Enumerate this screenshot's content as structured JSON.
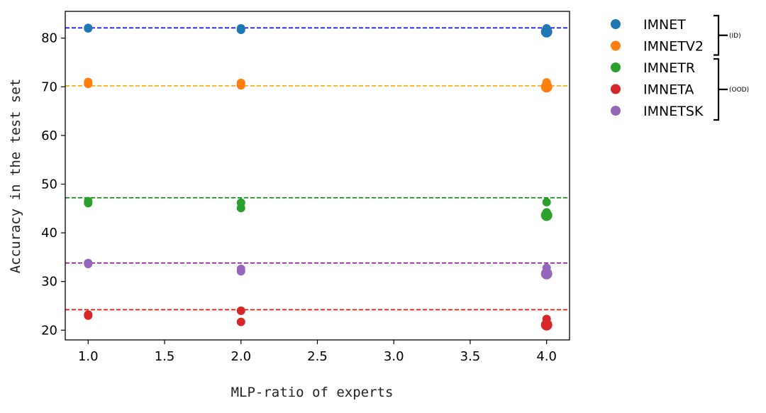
{
  "chart_data": {
    "type": "scatter",
    "xlabel": "MLP-ratio of experts",
    "ylabel": "Accuracy in the test set",
    "xlim": [
      0.85,
      4.15
    ],
    "ylim": [
      18,
      85.5
    ],
    "xticks": [
      1.0,
      1.5,
      2.0,
      2.5,
      3.0,
      3.5,
      4.0
    ],
    "xtick_labels": [
      "1.0",
      "1.5",
      "2.0",
      "2.5",
      "3.0",
      "3.5",
      "4.0"
    ],
    "yticks": [
      20,
      30,
      40,
      50,
      60,
      70,
      80
    ],
    "ytick_labels": [
      "20",
      "30",
      "40",
      "50",
      "60",
      "70",
      "80"
    ],
    "grid": false,
    "legend_position": "outside-right",
    "series": [
      {
        "name": "IMNET",
        "color": "#1f77b4",
        "reference_line": 82.1,
        "reference_color": "#0000ff",
        "points": [
          {
            "x": 1.0,
            "y": 82.1
          },
          {
            "x": 1.0,
            "y": 82.0
          },
          {
            "x": 2.0,
            "y": 82.0
          },
          {
            "x": 2.0,
            "y": 81.7
          },
          {
            "x": 4.0,
            "y": 82.0
          },
          {
            "x": 4.0,
            "y": 81.3
          }
        ]
      },
      {
        "name": "IMNETV2",
        "color": "#ff7f0e",
        "reference_line": 70.2,
        "reference_color": "#ffa500",
        "points": [
          {
            "x": 1.0,
            "y": 71.0
          },
          {
            "x": 1.0,
            "y": 70.6
          },
          {
            "x": 2.0,
            "y": 70.8
          },
          {
            "x": 2.0,
            "y": 70.3
          },
          {
            "x": 4.0,
            "y": 70.9
          },
          {
            "x": 4.0,
            "y": 70.0
          }
        ]
      },
      {
        "name": "IMNETR",
        "color": "#2ca02c",
        "reference_line": 47.2,
        "reference_color": "#008000",
        "points": [
          {
            "x": 1.0,
            "y": 46.5
          },
          {
            "x": 1.0,
            "y": 46.1
          },
          {
            "x": 2.0,
            "y": 46.2
          },
          {
            "x": 2.0,
            "y": 45.1
          },
          {
            "x": 4.0,
            "y": 46.3
          },
          {
            "x": 4.0,
            "y": 44.2
          },
          {
            "x": 4.0,
            "y": 43.6
          }
        ]
      },
      {
        "name": "IMNETA",
        "color": "#d62728",
        "reference_line": 24.2,
        "reference_color": "#ff0000",
        "points": [
          {
            "x": 1.0,
            "y": 23.2
          },
          {
            "x": 1.0,
            "y": 23.0
          },
          {
            "x": 2.0,
            "y": 24.0
          },
          {
            "x": 2.0,
            "y": 21.7
          },
          {
            "x": 4.0,
            "y": 22.3
          },
          {
            "x": 4.0,
            "y": 21.1
          }
        ]
      },
      {
        "name": "IMNETSK",
        "color": "#9467bd",
        "reference_line": 33.8,
        "reference_color": "#800080",
        "points": [
          {
            "x": 1.0,
            "y": 33.8
          },
          {
            "x": 1.0,
            "y": 33.6
          },
          {
            "x": 2.0,
            "y": 32.6
          },
          {
            "x": 2.0,
            "y": 32.1
          },
          {
            "x": 4.0,
            "y": 32.8
          },
          {
            "x": 4.0,
            "y": 31.6
          }
        ]
      }
    ],
    "legend_groups": [
      {
        "label": "(ID)",
        "members": [
          "IMNET",
          "IMNETV2"
        ]
      },
      {
        "label": "(OOD)",
        "members": [
          "IMNETR",
          "IMNETA",
          "IMNETSK"
        ]
      }
    ]
  }
}
